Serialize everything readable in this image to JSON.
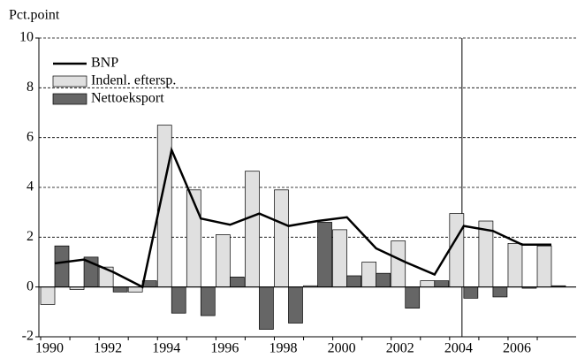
{
  "chart_data": {
    "type": "bar",
    "y_axis_label": "Pct.point",
    "categories": [
      "1990",
      null,
      "1992",
      null,
      "1994",
      null,
      "1996",
      null,
      "1998",
      null,
      "2000",
      null,
      "2002",
      null,
      "2004",
      null,
      "2006",
      null
    ],
    "series": [
      {
        "name": "BNP",
        "type": "line",
        "color": "#000000",
        "values": [
          0.95,
          1.1,
          0.6,
          0.0,
          5.5,
          2.75,
          2.5,
          2.95,
          2.45,
          2.65,
          2.8,
          1.55,
          1.0,
          0.5,
          2.45,
          2.25,
          1.7,
          1.7
        ]
      },
      {
        "name": "Indenl. eftersp.",
        "type": "bar",
        "color": "#e0e0e0",
        "values": [
          -0.7,
          -0.1,
          0.8,
          -0.2,
          6.5,
          3.9,
          2.1,
          4.65,
          3.9,
          0.05,
          2.3,
          1.0,
          1.85,
          0.25,
          2.95,
          2.65,
          1.75,
          1.65
        ]
      },
      {
        "name": "Nettoeksport",
        "type": "bar",
        "color": "#666666",
        "values": [
          1.65,
          1.2,
          -0.2,
          0.25,
          -1.05,
          -1.15,
          0.4,
          -1.7,
          -1.45,
          2.6,
          0.45,
          0.55,
          -0.85,
          0.25,
          -0.45,
          -0.4,
          -0.05,
          0.05
        ]
      }
    ],
    "ylim": [
      -2,
      10
    ],
    "yticks": [
      -2,
      0,
      2,
      4,
      6,
      8,
      10
    ],
    "grid": true,
    "legend": "upper left"
  }
}
